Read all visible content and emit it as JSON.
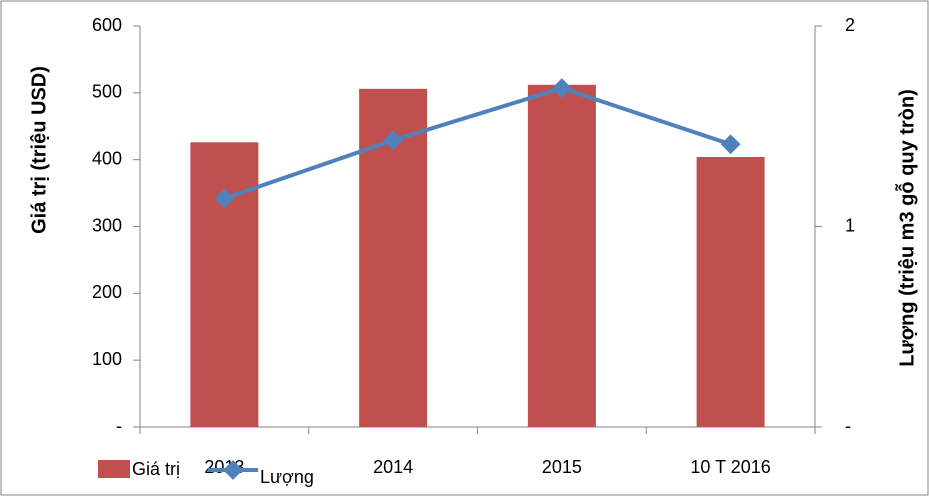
{
  "chart_data": {
    "type": "bar-line",
    "categories": [
      "2013",
      "2014",
      "2015",
      "10 T 2016"
    ],
    "y_label": "Giá trị (triệu USD)",
    "y2_label": "Lượng (triệu m3 gỗ quy tròn)",
    "series": [
      {
        "name": "Giá trị",
        "type": "bar",
        "color": "#c0504d",
        "values": [
          426,
          506,
          512,
          404
        ]
      },
      {
        "name": "Lượng",
        "type": "line",
        "axis": "y2",
        "color": "#4f81bd",
        "values": [
          1.14,
          1.43,
          1.69,
          1.41
        ]
      }
    ],
    "ylim": [
      0,
      600
    ],
    "yticks": [
      {
        "value": 0,
        "label": "-"
      },
      100,
      200,
      300,
      400,
      500,
      600
    ],
    "y2lim": [
      0,
      2
    ],
    "y2ticks": [
      {
        "value": 0,
        "label": "-"
      },
      1,
      2
    ],
    "legend": "bottom-left"
  }
}
